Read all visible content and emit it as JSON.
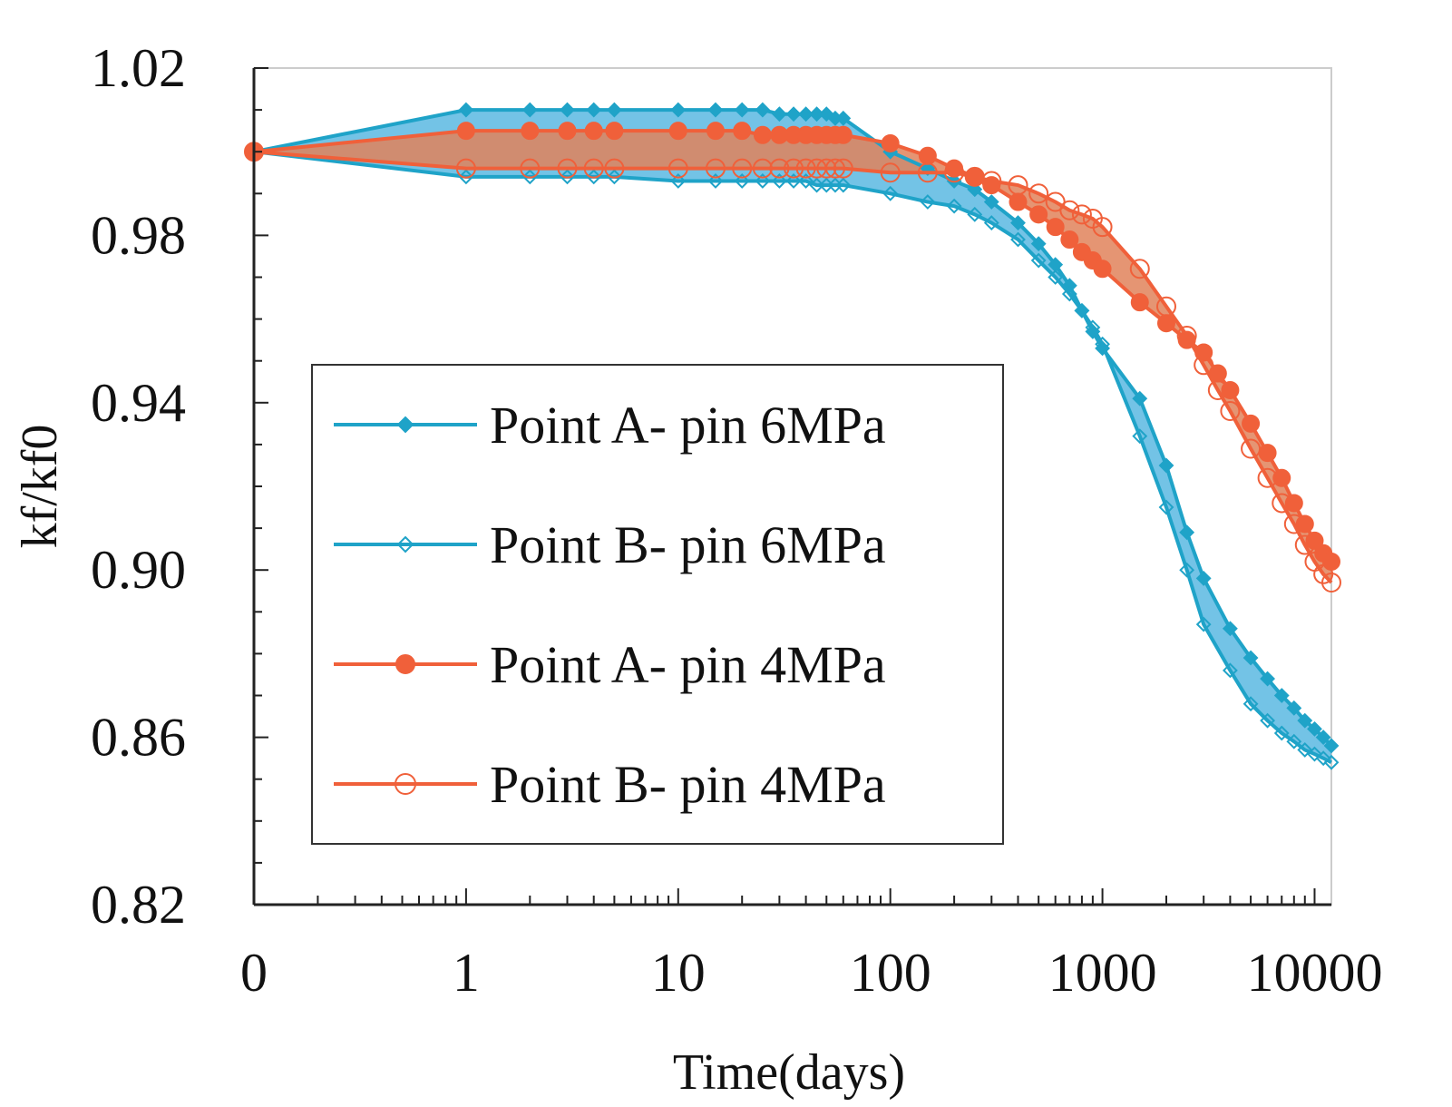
{
  "chart_data": {
    "type": "line",
    "xlabel": "Time(days)",
    "ylabel": "kf/kf0",
    "xscale": "log",
    "xlim": [
      0.1,
      12000
    ],
    "ylim": [
      0.82,
      1.02
    ],
    "x_tick_labels": [
      {
        "value": 0.1,
        "label": "0"
      },
      {
        "value": 1,
        "label": "1"
      },
      {
        "value": 10,
        "label": "10"
      },
      {
        "value": 100,
        "label": "100"
      },
      {
        "value": 1000,
        "label": "1000"
      },
      {
        "value": 10000,
        "label": "10000"
      }
    ],
    "y_tick_labels": [
      {
        "value": 0.82,
        "label": "0.82"
      },
      {
        "value": 0.86,
        "label": "0.86"
      },
      {
        "value": 0.9,
        "label": "0.90"
      },
      {
        "value": 0.94,
        "label": "0.94"
      },
      {
        "value": 0.98,
        "label": "0.98"
      },
      {
        "value": 1.02,
        "label": "1.02"
      }
    ],
    "legend_position": "center-left",
    "series": [
      {
        "name": "Point A- pin 6MPa",
        "color": "#1fa3c8",
        "marker": "filled-diamond",
        "x": [
          0.1,
          1,
          2,
          3,
          4,
          5,
          10,
          15,
          20,
          25,
          30,
          35,
          40,
          45,
          50,
          55,
          60,
          100,
          150,
          200,
          250,
          300,
          400,
          500,
          600,
          700,
          800,
          900,
          1000,
          1500,
          2000,
          2500,
          3000,
          4000,
          5000,
          6000,
          7000,
          8000,
          9000,
          10000,
          11000,
          12000
        ],
        "values": [
          1.0,
          1.01,
          1.01,
          1.01,
          1.01,
          1.01,
          1.01,
          1.01,
          1.01,
          1.01,
          1.009,
          1.009,
          1.009,
          1.009,
          1.009,
          1.008,
          1.008,
          1.0,
          0.996,
          0.993,
          0.991,
          0.988,
          0.983,
          0.978,
          0.973,
          0.968,
          0.962,
          0.957,
          0.953,
          0.941,
          0.925,
          0.909,
          0.898,
          0.886,
          0.879,
          0.874,
          0.87,
          0.867,
          0.864,
          0.862,
          0.86,
          0.858
        ]
      },
      {
        "name": "Point B- pin 6MPa",
        "color": "#1fa3c8",
        "marker": "open-diamond",
        "x": [
          0.1,
          1,
          2,
          3,
          4,
          5,
          10,
          15,
          20,
          25,
          30,
          35,
          40,
          45,
          50,
          55,
          60,
          100,
          150,
          200,
          250,
          300,
          400,
          500,
          600,
          700,
          800,
          900,
          1000,
          1500,
          2000,
          2500,
          3000,
          4000,
          5000,
          6000,
          7000,
          8000,
          9000,
          10000,
          11000,
          12000
        ],
        "values": [
          1.0,
          0.994,
          0.994,
          0.994,
          0.994,
          0.994,
          0.993,
          0.993,
          0.993,
          0.993,
          0.993,
          0.993,
          0.993,
          0.992,
          0.992,
          0.992,
          0.992,
          0.99,
          0.988,
          0.987,
          0.985,
          0.983,
          0.979,
          0.974,
          0.97,
          0.966,
          0.962,
          0.958,
          0.954,
          0.932,
          0.915,
          0.9,
          0.887,
          0.876,
          0.868,
          0.864,
          0.861,
          0.859,
          0.857,
          0.856,
          0.855,
          0.854
        ]
      },
      {
        "name": "Point A- pin 4MPa",
        "color": "#f0603a",
        "marker": "filled-circle",
        "x": [
          0.1,
          1,
          2,
          3,
          4,
          5,
          10,
          15,
          20,
          25,
          30,
          35,
          40,
          45,
          50,
          55,
          60,
          100,
          150,
          200,
          250,
          300,
          400,
          500,
          600,
          700,
          800,
          900,
          1000,
          1500,
          2000,
          2500,
          3000,
          3500,
          4000,
          5000,
          6000,
          7000,
          8000,
          9000,
          10000,
          11000,
          12000
        ],
        "values": [
          1.0,
          1.005,
          1.005,
          1.005,
          1.005,
          1.005,
          1.005,
          1.005,
          1.005,
          1.004,
          1.004,
          1.004,
          1.004,
          1.004,
          1.004,
          1.004,
          1.004,
          1.002,
          0.999,
          0.996,
          0.994,
          0.992,
          0.988,
          0.985,
          0.982,
          0.979,
          0.976,
          0.974,
          0.972,
          0.964,
          0.959,
          0.955,
          0.952,
          0.947,
          0.943,
          0.935,
          0.928,
          0.922,
          0.916,
          0.911,
          0.907,
          0.904,
          0.902
        ]
      },
      {
        "name": "Point B- pin 4MPa",
        "color": "#f0603a",
        "marker": "open-circle",
        "x": [
          0.1,
          1,
          2,
          3,
          4,
          5,
          10,
          15,
          20,
          25,
          30,
          35,
          40,
          45,
          50,
          55,
          60,
          100,
          150,
          200,
          250,
          300,
          400,
          500,
          600,
          700,
          800,
          900,
          1000,
          1500,
          2000,
          2500,
          3000,
          3500,
          4000,
          5000,
          6000,
          7000,
          8000,
          9000,
          10000,
          11000,
          12000
        ],
        "values": [
          1.0,
          0.996,
          0.996,
          0.996,
          0.996,
          0.996,
          0.996,
          0.996,
          0.996,
          0.996,
          0.996,
          0.996,
          0.996,
          0.996,
          0.996,
          0.996,
          0.996,
          0.995,
          0.995,
          0.995,
          0.994,
          0.993,
          0.992,
          0.99,
          0.988,
          0.986,
          0.985,
          0.984,
          0.982,
          0.972,
          0.963,
          0.956,
          0.949,
          0.943,
          0.938,
          0.929,
          0.922,
          0.916,
          0.911,
          0.906,
          0.902,
          0.899,
          0.897
        ]
      }
    ],
    "bands": [
      {
        "between": [
          "Point A- pin 6MPa",
          "Point B- pin 6MPa"
        ],
        "color": "#5bb9e2"
      },
      {
        "between": [
          "Point A- pin 4MPa",
          "Point B- pin 4MPa"
        ],
        "color": "#e0825a"
      }
    ]
  }
}
